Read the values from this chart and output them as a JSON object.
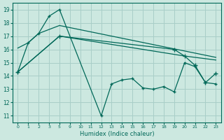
{
  "xlabel": "Humidex (Indice chaleur)",
  "bg_color": "#cce8e0",
  "grid_color": "#a8cec8",
  "line_color": "#006858",
  "ylim": [
    10.5,
    19.5
  ],
  "yticks": [
    11,
    12,
    13,
    14,
    15,
    16,
    17,
    18,
    19
  ],
  "xtick_labels": [
    "0",
    "1",
    "2",
    "3",
    "5",
    "9",
    "10",
    "11",
    "12",
    "13",
    "14",
    "15",
    "16",
    "17",
    "18",
    "19",
    "20",
    "21",
    "22",
    "23"
  ],
  "line1_idx": [
    0,
    1,
    2,
    3,
    4,
    8,
    9,
    10,
    11,
    12,
    13,
    14,
    15,
    16,
    17,
    18,
    19
  ],
  "line1_y": [
    14.3,
    16.5,
    17.2,
    18.5,
    19.0,
    11.0,
    13.4,
    13.7,
    13.8,
    13.1,
    13.0,
    13.2,
    12.8,
    15.0,
    14.7,
    13.5,
    13.4
  ],
  "line1_marker_idx": [
    0,
    1,
    2,
    3,
    4,
    8,
    9,
    10,
    11,
    12,
    13,
    14,
    15,
    16,
    17,
    18,
    19
  ],
  "line2_idx": [
    0,
    1,
    2,
    3,
    4,
    19
  ],
  "line2_y": [
    16.1,
    16.5,
    17.2,
    17.5,
    17.8,
    15.4
  ],
  "line3_idx": [
    0,
    4,
    15,
    16,
    17,
    18,
    19
  ],
  "line3_y": [
    14.3,
    17.0,
    16.0,
    15.5,
    14.8,
    13.5,
    14.2
  ],
  "line4_idx": [
    0,
    4,
    16,
    19
  ],
  "line4_y": [
    14.3,
    17.0,
    15.5,
    15.2
  ]
}
